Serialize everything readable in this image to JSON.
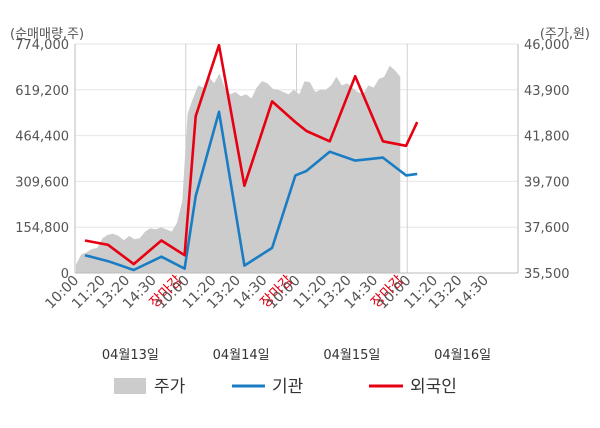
{
  "chart_data": {
    "type": "line",
    "left_axis_unit": "(순매매량,주)",
    "right_axis_unit": "(주가,원)",
    "left_ticks": [
      "774,000",
      "619,200",
      "464,400",
      "309,600",
      "154,800",
      "0"
    ],
    "right_ticks": [
      "46,000",
      "43,900",
      "41,800",
      "39,700",
      "37,600",
      "35,500"
    ],
    "left_ylim": [
      0,
      774000
    ],
    "right_ylim": [
      35500,
      46000
    ],
    "x_ticks": [
      "10:00",
      "11:20",
      "13:20",
      "14:30",
      "장마감",
      "10:00",
      "11:20",
      "13:20",
      "14:30",
      "장마감",
      "10:00",
      "11:20",
      "13:20",
      "14:30",
      "장마감",
      "10:00",
      "11:20",
      "13:20",
      "14:30"
    ],
    "day_labels": [
      "04월13일",
      "04월14일",
      "04월15일",
      "04월16일"
    ],
    "legend": [
      "주가",
      "기관",
      "외국인"
    ],
    "colors": {
      "price": "#cccccc",
      "institution": "#1a7dc4",
      "foreign": "#e60012"
    },
    "institution": {
      "name": "기관",
      "values": [
        60000,
        40000,
        10000,
        55000,
        15000,
        260000,
        545000,
        25000,
        85000,
        330000,
        345000,
        410000,
        380000,
        390000,
        330000,
        335000
      ]
    },
    "foreign": {
      "name": "외국인",
      "values": [
        110000,
        95000,
        30000,
        110000,
        60000,
        530000,
        770000,
        295000,
        580000,
        510000,
        480000,
        445000,
        665000,
        445000,
        430000,
        510000
      ]
    },
    "price": {
      "name": "주가",
      "values": [
        35900,
        36350,
        36450,
        36600,
        36650,
        37100,
        37250,
        37300,
        37200,
        37000,
        37200,
        37050,
        37100,
        37400,
        37550,
        37500,
        37600,
        37500,
        37400,
        37800,
        38800,
        42800,
        43500,
        44100,
        44000,
        44500,
        44200,
        44650,
        44000,
        43700,
        43800,
        43600,
        43700,
        43500,
        44000,
        44300,
        44200,
        43950,
        43900,
        43800,
        43700,
        43900,
        43700,
        44300,
        44250,
        43800,
        43900,
        43900,
        44100,
        44500,
        44100,
        44200,
        44000,
        43800,
        43700,
        44100,
        44000,
        44400,
        44500,
        45000,
        44800,
        44500
      ]
    }
  }
}
